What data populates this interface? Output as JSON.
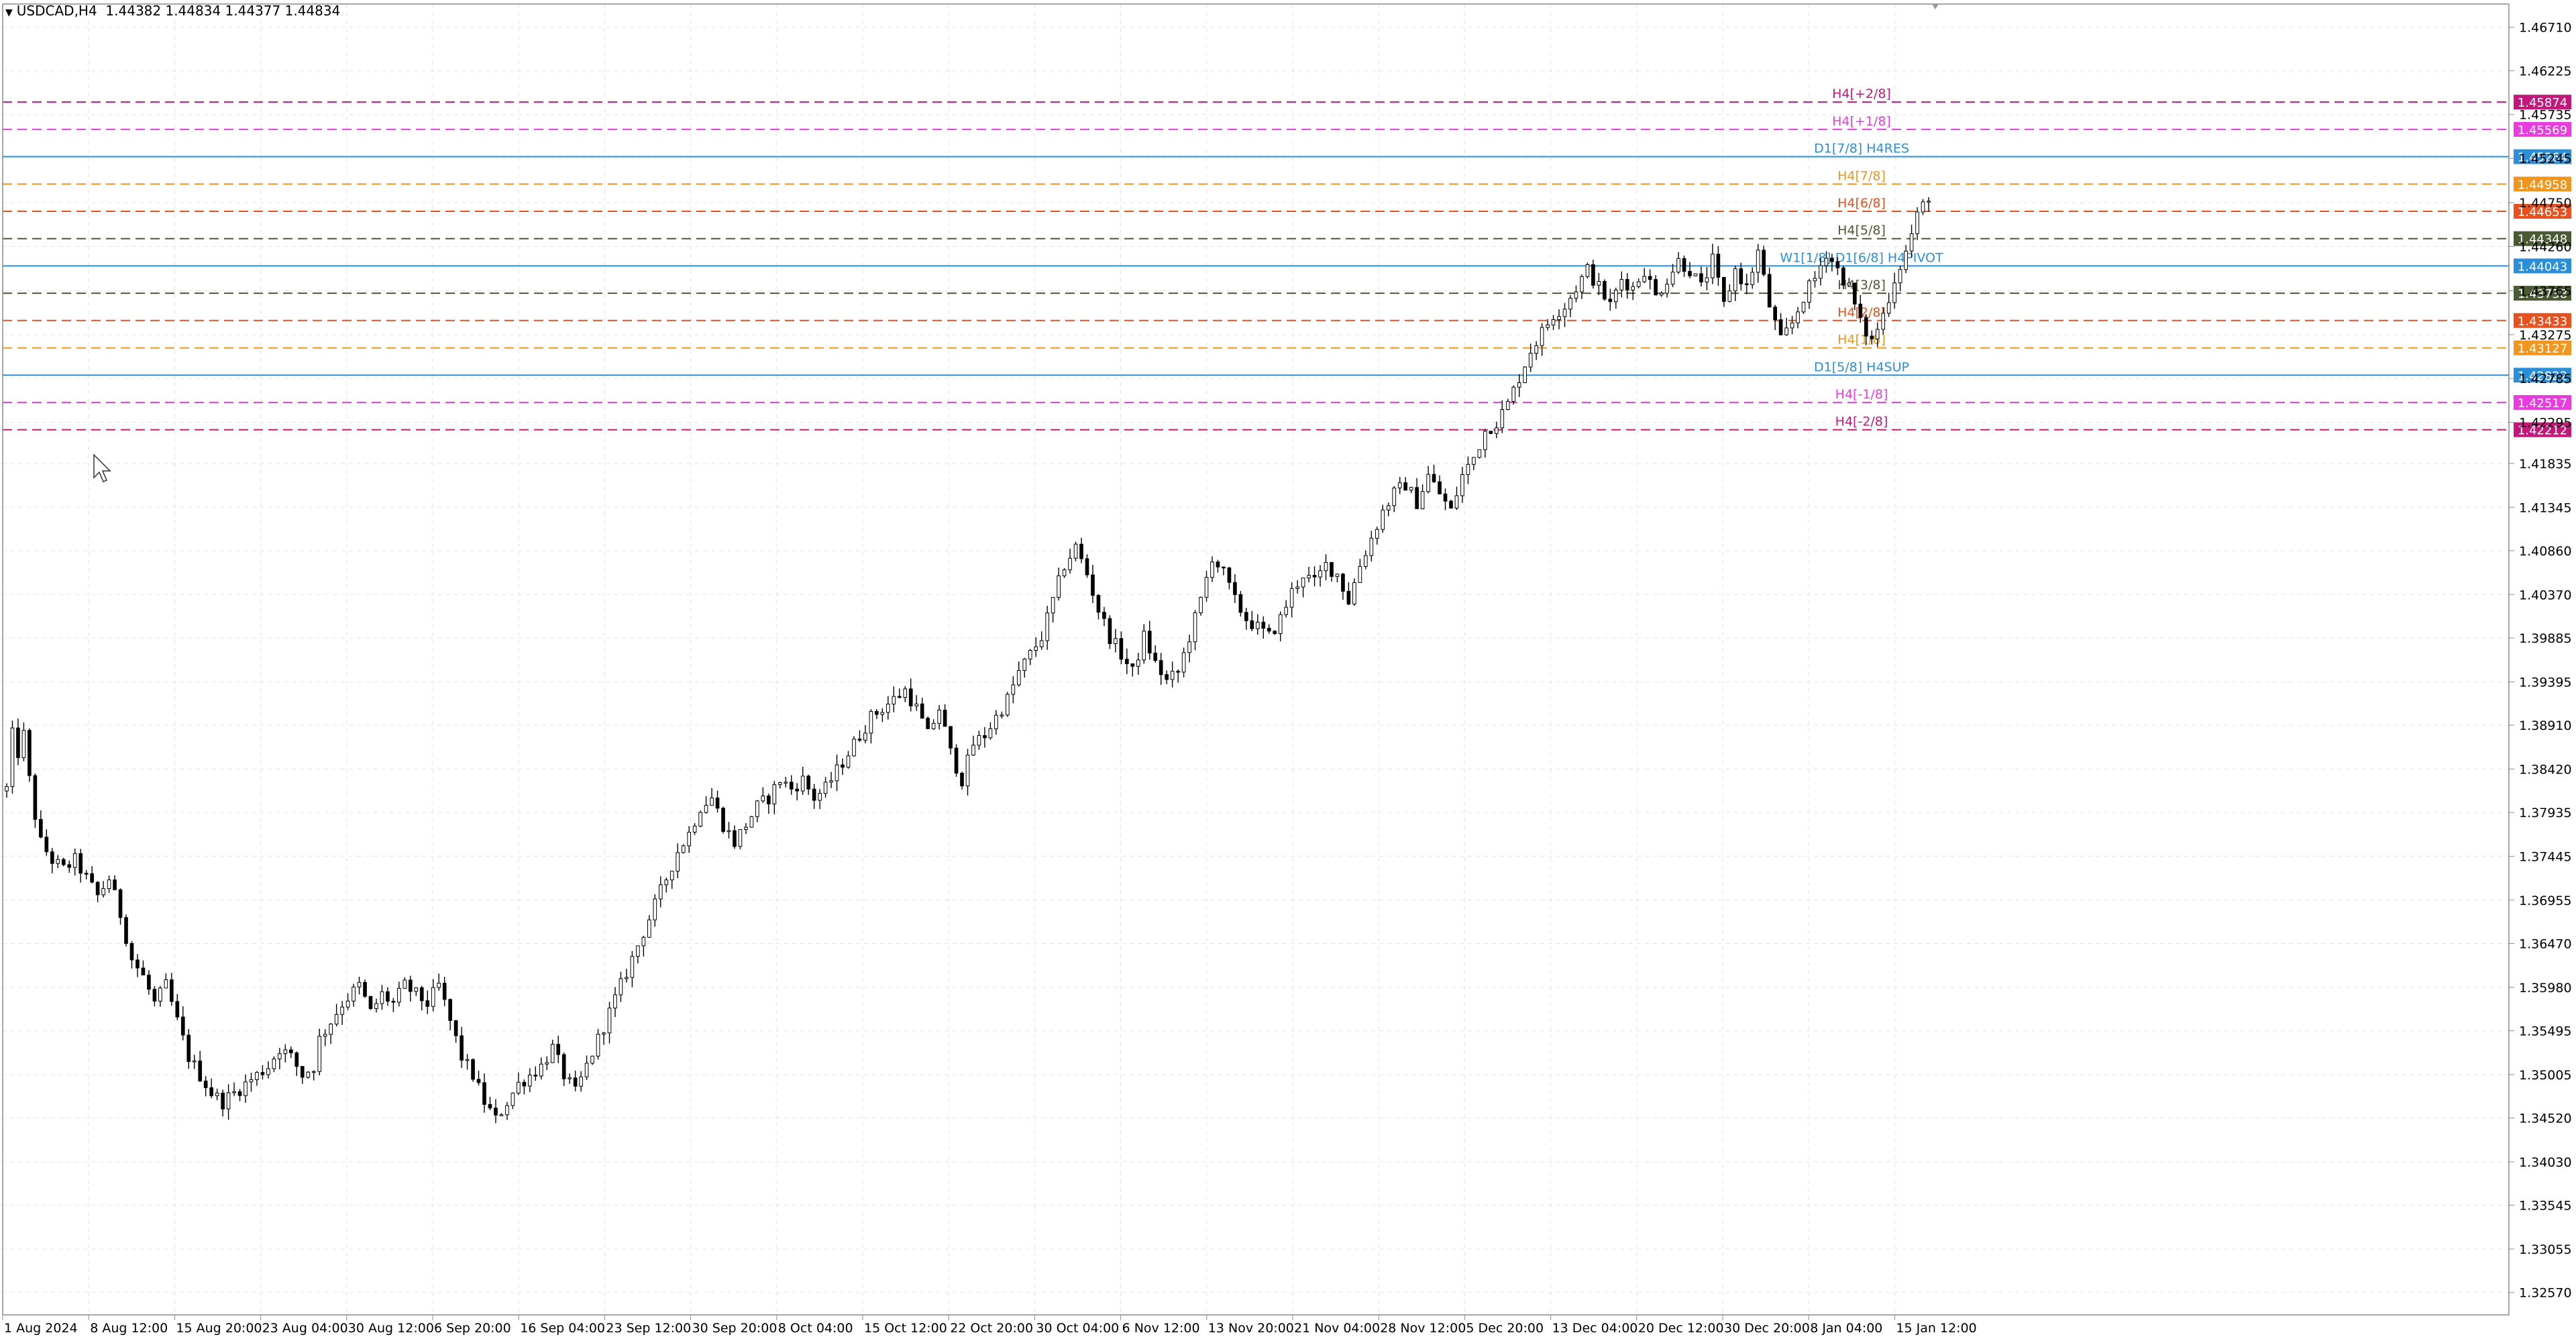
{
  "header": {
    "symbol": "USDCAD,H4",
    "ohlc": "1.44382 1.44834 1.44377 1.44834"
  },
  "colors": {
    "background": "#ffffff",
    "grid": "#e4e4e4",
    "axis": "#8c8c8c",
    "candle": "#000000"
  },
  "chart_data": {
    "type": "candlestick",
    "symbol": "USDCAD",
    "timeframe": "H4",
    "ylim": [
      1.3232,
      1.4697
    ],
    "y_ticks": [
      "1.46710",
      "1.46225",
      "1.45735",
      "1.45245",
      "1.44750",
      "1.44260",
      "1.43765",
      "1.43275",
      "1.42785",
      "1.42295",
      "1.41835",
      "1.41345",
      "1.40860",
      "1.40370",
      "1.39885",
      "1.39395",
      "1.38910",
      "1.38420",
      "1.37935",
      "1.37445",
      "1.36955",
      "1.36470",
      "1.35980",
      "1.35495",
      "1.35005",
      "1.34520",
      "1.34030",
      "1.33545",
      "1.33055",
      "1.32570"
    ],
    "x_ticks": [
      "1 Aug 2024",
      "8 Aug 12:00",
      "15 Aug 20:00",
      "23 Aug 04:00",
      "30 Aug 12:00",
      "6 Sep 20:00",
      "16 Sep 04:00",
      "23 Sep 12:00",
      "30 Sep 20:00",
      "8 Oct 04:00",
      "15 Oct 12:00",
      "22 Oct 20:00",
      "30 Oct 04:00",
      "6 Nov 12:00",
      "13 Nov 20:00",
      "21 Nov 04:00",
      "28 Nov 12:00",
      "5 Dec 20:00",
      "13 Dec 04:00",
      "20 Dec 12:00",
      "30 Dec 20:00",
      "8 Jan 04:00",
      "15 Jan 12:00"
    ],
    "price_path": [
      [
        0,
        1.382
      ],
      [
        1,
        1.388
      ],
      [
        2,
        1.386
      ],
      [
        3,
        1.388
      ],
      [
        4,
        1.383
      ],
      [
        5,
        1.379
      ],
      [
        6,
        1.376
      ],
      [
        8,
        1.374
      ],
      [
        10,
        1.373
      ],
      [
        12,
        1.374
      ],
      [
        14,
        1.372
      ],
      [
        16,
        1.37
      ],
      [
        18,
        1.372
      ],
      [
        20,
        1.368
      ],
      [
        22,
        1.363
      ],
      [
        24,
        1.361
      ],
      [
        26,
        1.358
      ],
      [
        28,
        1.36
      ],
      [
        30,
        1.356
      ],
      [
        32,
        1.352
      ],
      [
        34,
        1.35
      ],
      [
        36,
        1.348
      ],
      [
        38,
        1.347
      ],
      [
        40,
        1.348
      ],
      [
        42,
        1.349
      ],
      [
        44,
        1.35
      ],
      [
        46,
        1.351
      ],
      [
        48,
        1.353
      ],
      [
        50,
        1.352
      ],
      [
        52,
        1.35
      ],
      [
        54,
        1.351
      ],
      [
        55,
        1.354
      ],
      [
        57,
        1.356
      ],
      [
        59,
        1.358
      ],
      [
        62,
        1.36
      ],
      [
        64,
        1.357
      ],
      [
        66,
        1.359
      ],
      [
        68,
        1.358
      ],
      [
        70,
        1.36
      ],
      [
        72,
        1.359
      ],
      [
        74,
        1.358
      ],
      [
        76,
        1.36
      ],
      [
        78,
        1.356
      ],
      [
        80,
        1.352
      ],
      [
        82,
        1.35
      ],
      [
        84,
        1.347
      ],
      [
        86,
        1.345
      ],
      [
        88,
        1.347
      ],
      [
        90,
        1.349
      ],
      [
        92,
        1.35
      ],
      [
        94,
        1.351
      ],
      [
        96,
        1.353
      ],
      [
        98,
        1.35
      ],
      [
        100,
        1.348
      ],
      [
        102,
        1.351
      ],
      [
        104,
        1.354
      ],
      [
        106,
        1.357
      ],
      [
        108,
        1.36
      ],
      [
        110,
        1.363
      ],
      [
        112,
        1.366
      ],
      [
        114,
        1.369
      ],
      [
        116,
        1.372
      ],
      [
        118,
        1.375
      ],
      [
        120,
        1.377
      ],
      [
        122,
        1.38
      ],
      [
        124,
        1.381
      ],
      [
        126,
        1.378
      ],
      [
        128,
        1.376
      ],
      [
        130,
        1.378
      ],
      [
        132,
        1.38
      ],
      [
        134,
        1.381
      ],
      [
        136,
        1.383
      ],
      [
        138,
        1.382
      ],
      [
        140,
        1.383
      ],
      [
        142,
        1.381
      ],
      [
        144,
        1.382
      ],
      [
        146,
        1.384
      ],
      [
        148,
        1.386
      ],
      [
        150,
        1.388
      ],
      [
        152,
        1.39
      ],
      [
        154,
        1.391
      ],
      [
        156,
        1.392
      ],
      [
        158,
        1.393
      ],
      [
        160,
        1.391
      ],
      [
        162,
        1.388
      ],
      [
        164,
        1.391
      ],
      [
        166,
        1.386
      ],
      [
        168,
        1.383
      ],
      [
        170,
        1.387
      ],
      [
        172,
        1.388
      ],
      [
        174,
        1.39
      ],
      [
        176,
        1.392
      ],
      [
        178,
        1.395
      ],
      [
        180,
        1.397
      ],
      [
        182,
        1.399
      ],
      [
        184,
        1.403
      ],
      [
        186,
        1.407
      ],
      [
        188,
        1.409
      ],
      [
        190,
        1.406
      ],
      [
        192,
        1.402
      ],
      [
        194,
        1.399
      ],
      [
        196,
        1.397
      ],
      [
        198,
        1.395
      ],
      [
        200,
        1.399
      ],
      [
        202,
        1.396
      ],
      [
        204,
        1.394
      ],
      [
        206,
        1.395
      ],
      [
        208,
        1.399
      ],
      [
        210,
        1.403
      ],
      [
        212,
        1.408
      ],
      [
        214,
        1.406
      ],
      [
        216,
        1.403
      ],
      [
        218,
        1.401
      ],
      [
        220,
        1.4
      ],
      [
        222,
        1.399
      ],
      [
        224,
        1.401
      ],
      [
        226,
        1.404
      ],
      [
        228,
        1.406
      ],
      [
        230,
        1.405
      ],
      [
        232,
        1.407
      ],
      [
        234,
        1.406
      ],
      [
        236,
        1.403
      ],
      [
        238,
        1.407
      ],
      [
        240,
        1.41
      ],
      [
        242,
        1.413
      ],
      [
        244,
        1.415
      ],
      [
        246,
        1.416
      ],
      [
        248,
        1.414
      ],
      [
        250,
        1.417
      ],
      [
        252,
        1.415
      ],
      [
        254,
        1.413
      ],
      [
        256,
        1.417
      ],
      [
        258,
        1.419
      ],
      [
        260,
        1.422
      ],
      [
        262,
        1.423
      ],
      [
        264,
        1.425
      ],
      [
        266,
        1.428
      ],
      [
        268,
        1.431
      ],
      [
        270,
        1.433
      ],
      [
        272,
        1.435
      ],
      [
        274,
        1.436
      ],
      [
        276,
        1.438
      ],
      [
        278,
        1.44
      ],
      [
        280,
        1.438
      ],
      [
        282,
        1.436
      ],
      [
        284,
        1.439
      ],
      [
        286,
        1.438
      ],
      [
        288,
        1.44
      ],
      [
        290,
        1.437
      ],
      [
        292,
        1.439
      ],
      [
        294,
        1.441
      ],
      [
        296,
        1.44
      ],
      [
        298,
        1.438
      ],
      [
        300,
        1.441
      ],
      [
        302,
        1.436
      ],
      [
        304,
        1.44
      ],
      [
        306,
        1.438
      ],
      [
        308,
        1.442
      ],
      [
        310,
        1.436
      ],
      [
        312,
        1.432
      ],
      [
        314,
        1.434
      ],
      [
        316,
        1.437
      ],
      [
        318,
        1.439
      ],
      [
        320,
        1.442
      ],
      [
        322,
        1.44
      ],
      [
        324,
        1.438
      ],
      [
        326,
        1.434
      ],
      [
        328,
        1.432
      ],
      [
        330,
        1.435
      ],
      [
        332,
        1.439
      ],
      [
        334,
        1.442
      ],
      [
        336,
        1.446
      ],
      [
        338,
        1.4483
      ]
    ],
    "levels": [
      {
        "label": "H4[+2/8]",
        "price_label": "1.45874",
        "value": 1.45874,
        "color": "#c2187a",
        "dashed": true
      },
      {
        "label": "H4[+1/8]",
        "price_label": "1.45569",
        "value": 1.45569,
        "color": "#e83cde",
        "dashed": true
      },
      {
        "label": "D1[7/8] H4RES",
        "price_label": "1.45264",
        "value": 1.45264,
        "color": "#2a8fd8",
        "dashed": false
      },
      {
        "label": "H4[7/8]",
        "price_label": "1.44958",
        "value": 1.44958,
        "color": "#f0951e",
        "dashed": true
      },
      {
        "label": "H4[6/8]",
        "price_label": "1.44653",
        "value": 1.44653,
        "color": "#e8501e",
        "dashed": true
      },
      {
        "label": "H4[5/8]",
        "price_label": "1.44348",
        "value": 1.44348,
        "color": "#4a5a32",
        "dashed": true
      },
      {
        "label": "W1[1/8] D1[6/8] H4PIVOT",
        "price_label": "1.44043",
        "value": 1.44043,
        "color": "#2a8fd8",
        "dashed": false
      },
      {
        "label": "H4[3/8]",
        "price_label": "1.43738",
        "value": 1.43738,
        "color": "#4a5a32",
        "dashed": true
      },
      {
        "label": "H4[2/8]",
        "price_label": "1.43433",
        "value": 1.43433,
        "color": "#e8501e",
        "dashed": true
      },
      {
        "label": "H4[1/8]",
        "price_label": "1.43127",
        "value": 1.43127,
        "color": "#f0951e",
        "dashed": true
      },
      {
        "label": "D1[5/8] H4SUP",
        "price_label": "1.42822",
        "value": 1.42822,
        "color": "#2a8fd8",
        "dashed": false
      },
      {
        "label": "H4[-1/8]",
        "price_label": "1.42517",
        "value": 1.42517,
        "color": "#e83cde",
        "dashed": true
      },
      {
        "label": "H4[-2/8]",
        "price_label": "1.42212",
        "value": 1.42212,
        "color": "#c2187a",
        "dashed": true
      }
    ]
  }
}
